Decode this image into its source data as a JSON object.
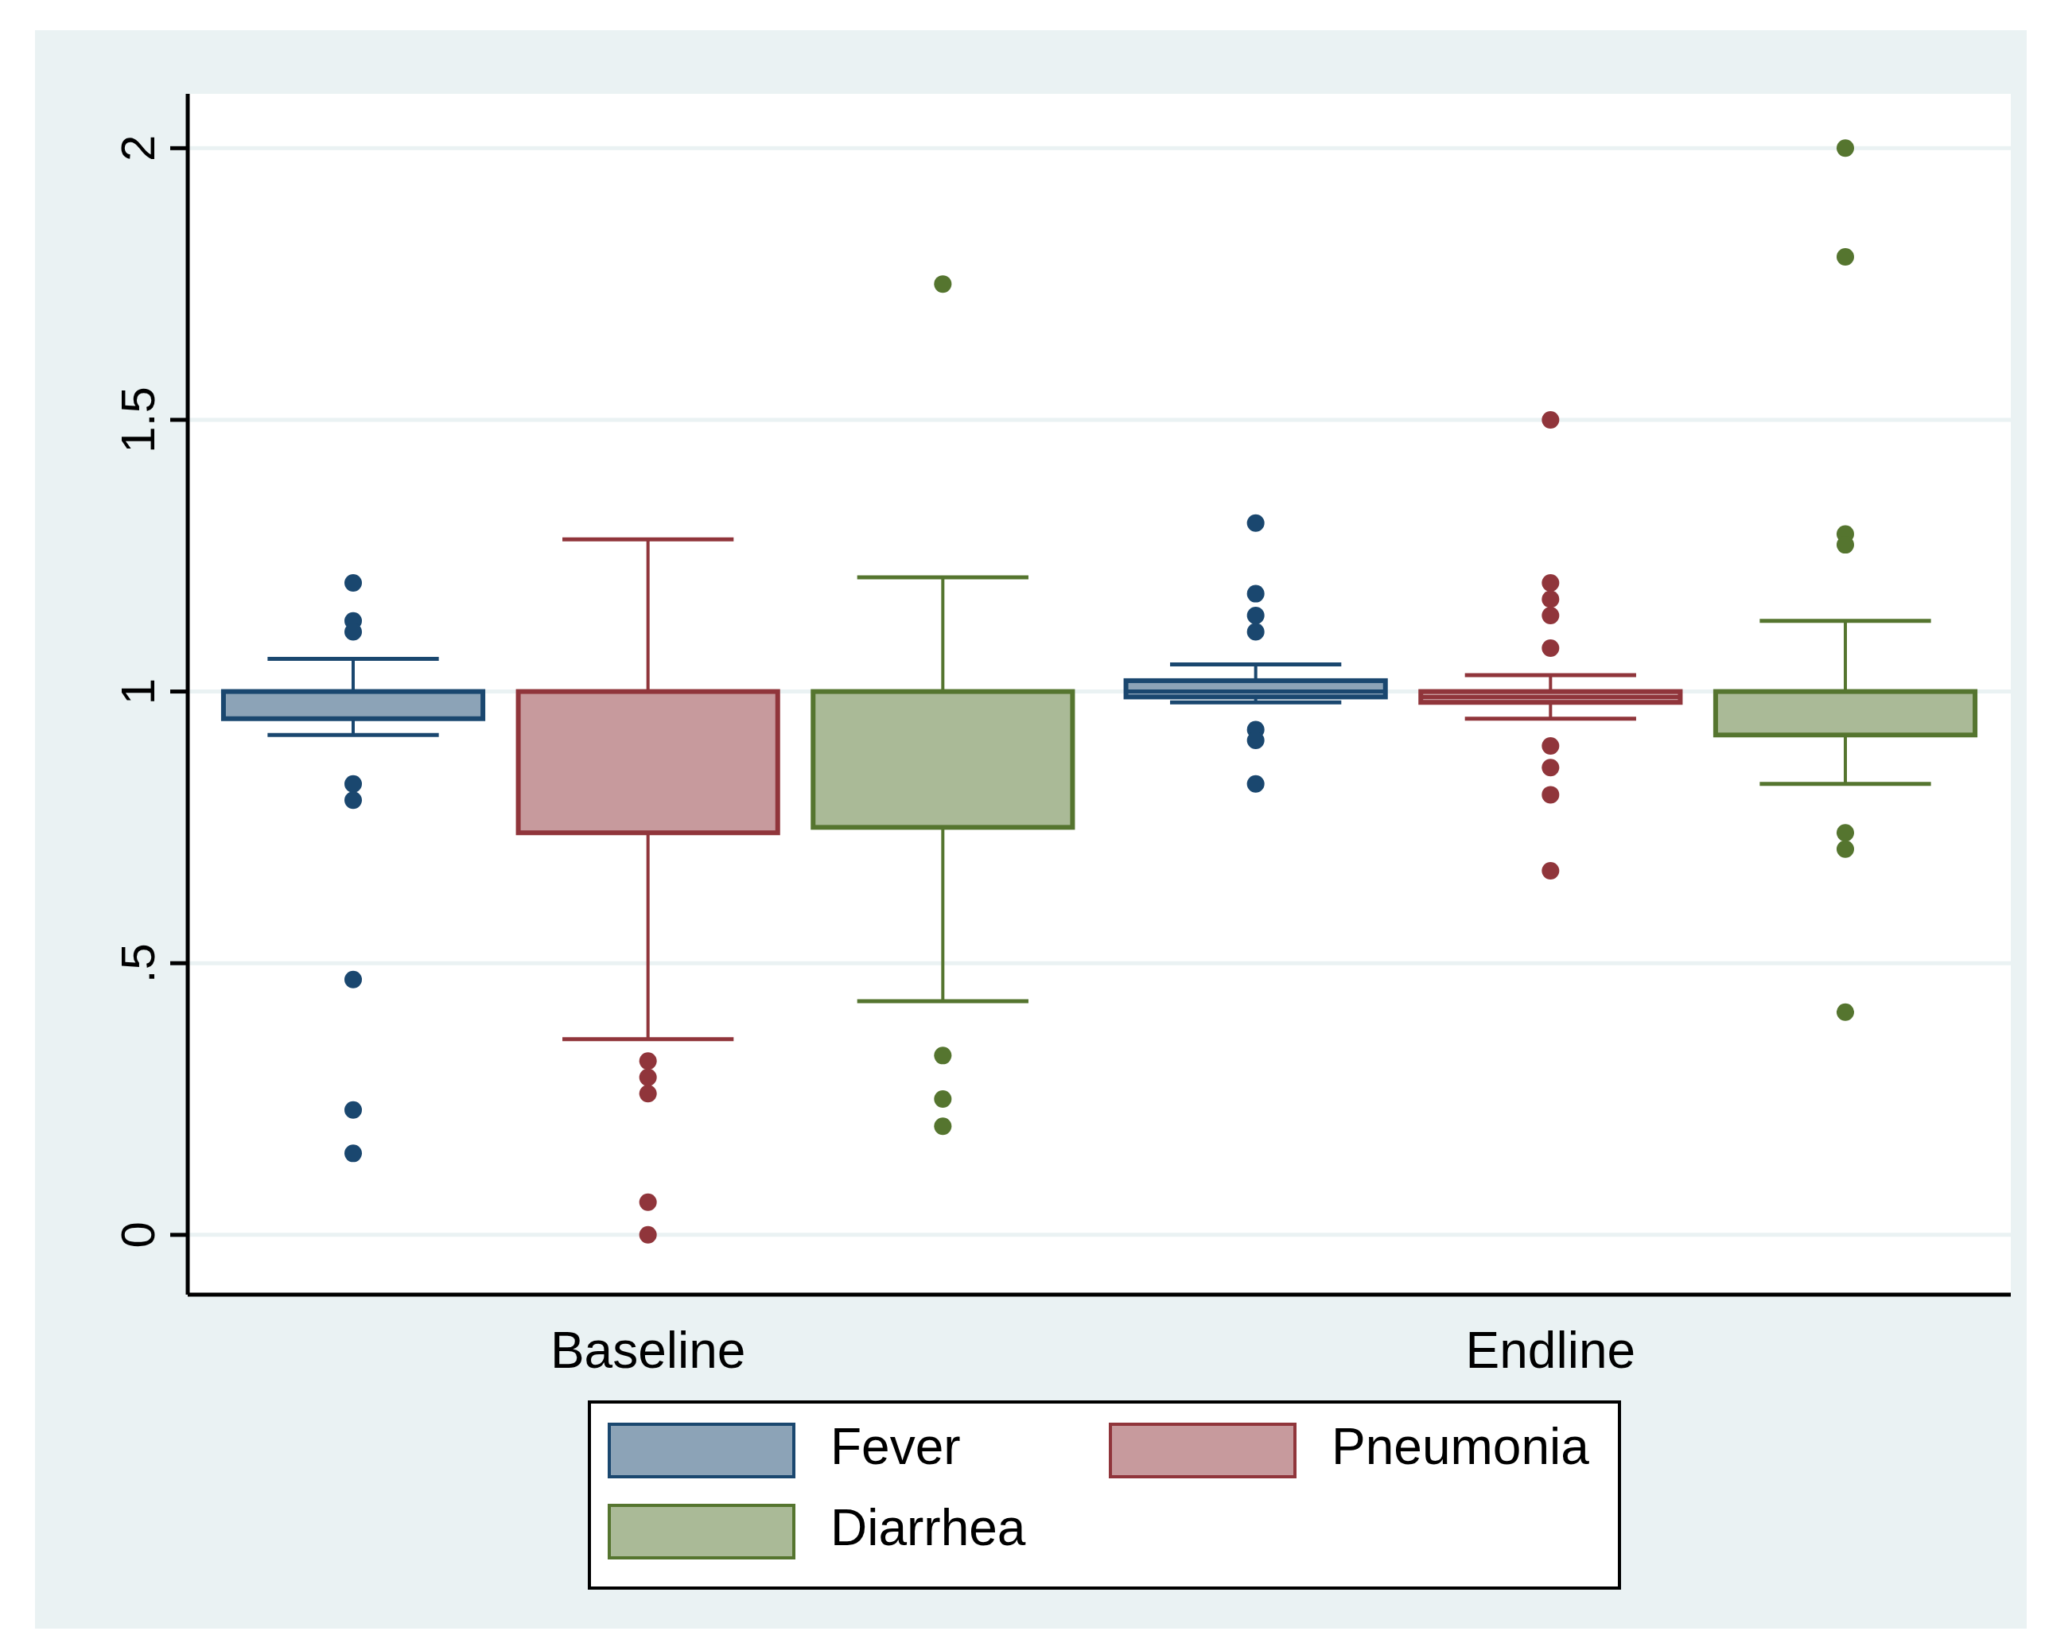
{
  "chart_data": {
    "type": "box",
    "categories": [
      "Baseline",
      "Endline"
    ],
    "series": [
      {
        "name": "Fever",
        "color": "#1a476f",
        "boxes": [
          {
            "low": 0.92,
            "q1": 0.95,
            "median": 1.0,
            "q3": 1.0,
            "high": 1.06,
            "outliers": [
              1.2,
              1.13,
              1.11,
              0.83,
              0.8,
              0.47,
              0.23,
              0.15
            ]
          },
          {
            "low": 0.98,
            "q1": 0.99,
            "median": 1.0,
            "q3": 1.02,
            "high": 1.05,
            "outliers": [
              1.31,
              1.18,
              1.14,
              1.11,
              0.93,
              0.91,
              0.83
            ]
          }
        ]
      },
      {
        "name": "Pneumonia",
        "color": "#90353b",
        "boxes": [
          {
            "low": 0.36,
            "q1": 0.74,
            "median": 1.0,
            "q3": 1.0,
            "high": 1.28,
            "outliers": [
              0.32,
              0.29,
              0.26,
              0.06,
              0.0
            ]
          },
          {
            "low": 0.95,
            "q1": 0.98,
            "median": 0.99,
            "q3": 1.0,
            "high": 1.03,
            "outliers": [
              1.5,
              1.2,
              1.17,
              1.14,
              1.08,
              0.9,
              0.86,
              0.81,
              0.67
            ]
          }
        ]
      },
      {
        "name": "Diarrhea",
        "color": "#55752f",
        "boxes": [
          {
            "low": 0.43,
            "q1": 0.75,
            "median": 1.0,
            "q3": 1.0,
            "high": 1.21,
            "outliers": [
              1.75,
              0.33,
              0.25,
              0.2
            ]
          },
          {
            "low": 0.83,
            "q1": 0.92,
            "median": 1.0,
            "q3": 1.0,
            "high": 1.13,
            "outliers": [
              2.0,
              1.8,
              1.29,
              1.27,
              0.74,
              0.71,
              0.41
            ]
          }
        ]
      }
    ],
    "ylim": [
      -0.11,
      2.1
    ],
    "yticks": [
      0,
      {
        "value": 0.5,
        "label": ".5"
      },
      1,
      1.5,
      2
    ],
    "grid": "y",
    "legend": "bottom",
    "marker": "circle"
  }
}
